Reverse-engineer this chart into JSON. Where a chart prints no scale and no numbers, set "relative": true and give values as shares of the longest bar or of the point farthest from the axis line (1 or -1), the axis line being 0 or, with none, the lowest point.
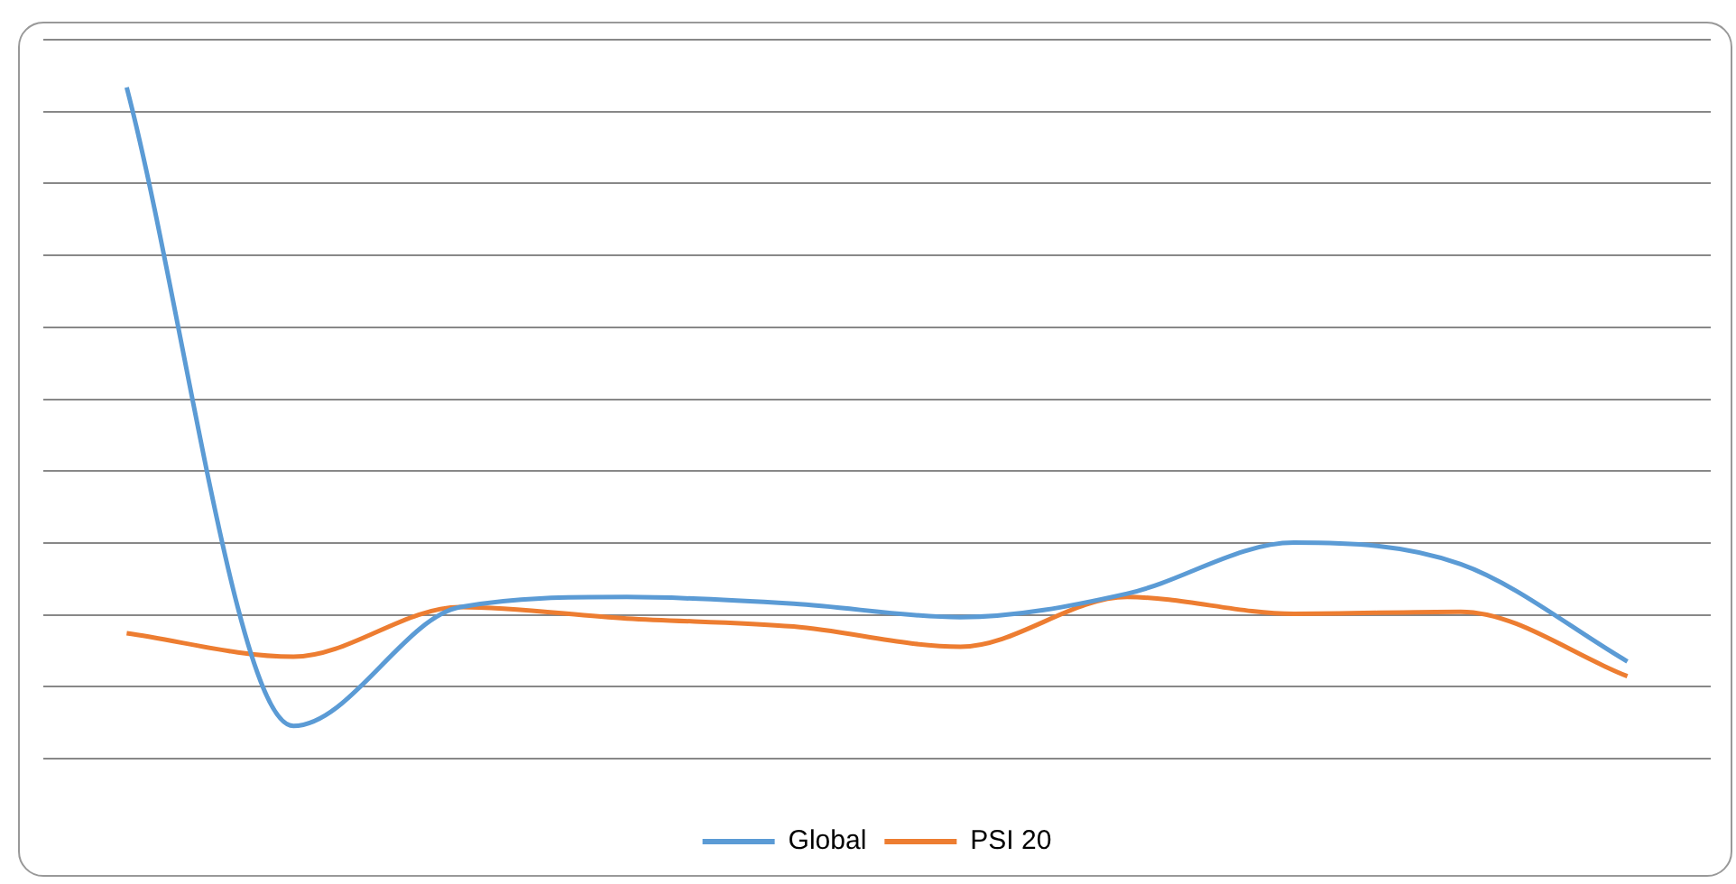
{
  "chart_data": {
    "type": "line",
    "relative": true,
    "categories": [
      null,
      null,
      null,
      null,
      null,
      null,
      null,
      null,
      null,
      null
    ],
    "series": [
      {
        "name": "Global",
        "color": "#5b9bd5",
        "values": [
          1,
          0.049,
          0.226,
          0.241,
          0.231,
          0.211,
          0.246,
          0.322,
          0.29,
          0.145
        ]
      },
      {
        "name": "PSI 20",
        "color": "#ed7d31",
        "values": [
          0.187,
          0.152,
          0.226,
          0.209,
          0.197,
          0.167,
          0.241,
          0.216,
          0.219,
          0.123
        ]
      }
    ],
    "grid": "y",
    "legend": "bottom",
    "marker": "none",
    "line_style": "solid"
  }
}
